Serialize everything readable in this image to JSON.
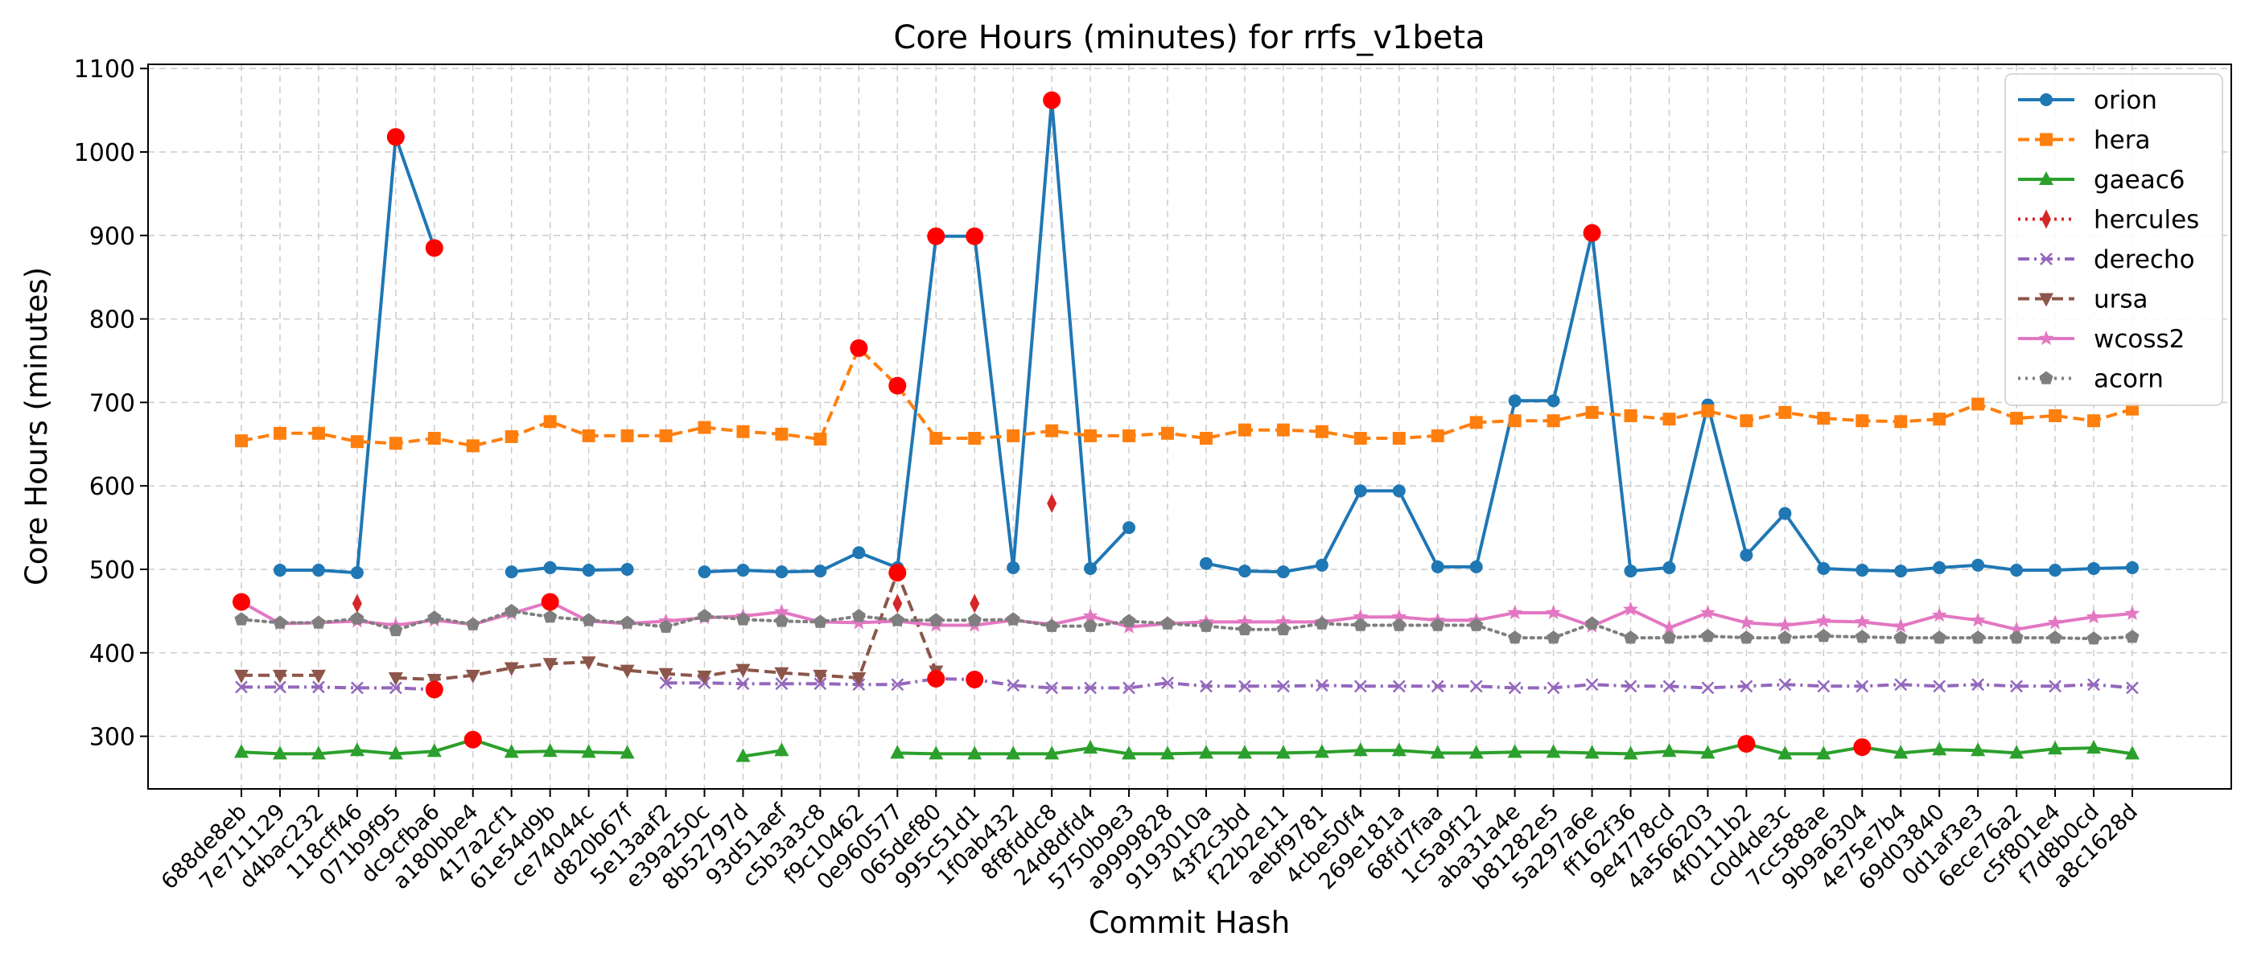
{
  "chart_data": {
    "type": "line",
    "title": "Core Hours (minutes) for rrfs_v1beta",
    "xlabel": "Commit Hash",
    "ylabel": "Core Hours (minutes)",
    "ylim": [
      237,
      1105
    ],
    "yticks": [
      300,
      400,
      500,
      600,
      700,
      800,
      900,
      1000,
      1100
    ],
    "grid": true,
    "legend_position": "top-right",
    "categories": [
      "688de8eb",
      "7e711129",
      "d4bac232",
      "118cff46",
      "071b9f95",
      "dc9cfba6",
      "a180bbe4",
      "417a2cf1",
      "61e54d9b",
      "ce74044c",
      "d820b67f",
      "5e13aaf2",
      "e39a250c",
      "8b52797d",
      "93d51aef",
      "c5b3a3c8",
      "f9c10462",
      "0e960577",
      "065def80",
      "995c51d1",
      "1f0ab432",
      "8f8fddc8",
      "24d8dfd4",
      "5750b9e3",
      "a9999828",
      "9193010a",
      "43f2c3bd",
      "f22b2e11",
      "aebf9781",
      "4cbe50f4",
      "269e181a",
      "68fd7faa",
      "1c5a9f12",
      "aba31a4e",
      "b81282e5",
      "5a297a6e",
      "ff162f36",
      "9e4778cd",
      "4a566203",
      "4f0111b2",
      "c0d4de3c",
      "7cc588ae",
      "9b9a6304",
      "4e75e7b4",
      "69d03840",
      "0d1af3e3",
      "6ece76a2",
      "c5f801e4",
      "f7d8b0cd",
      "a8c1628d"
    ],
    "series": [
      {
        "name": "orion",
        "color": "#1f77b4",
        "marker": "circle",
        "dash": "solid",
        "values": [
          null,
          499,
          499,
          496,
          1018,
          885,
          null,
          497,
          502,
          499,
          500,
          null,
          497,
          499,
          497,
          498,
          520,
          502,
          899,
          899,
          502,
          1062,
          501,
          550,
          null,
          507,
          498,
          497,
          505,
          594,
          594,
          503,
          503,
          702,
          702,
          903,
          498,
          502,
          697,
          517,
          567,
          501,
          499,
          498,
          502,
          505,
          499,
          499,
          501,
          502
        ]
      },
      {
        "name": "hera",
        "color": "#ff7f0e",
        "marker": "square",
        "dash": "dashed",
        "values": [
          654,
          663,
          663,
          653,
          651,
          657,
          648,
          659,
          677,
          660,
          660,
          660,
          670,
          665,
          662,
          656,
          765,
          720,
          657,
          657,
          660,
          666,
          660,
          660,
          663,
          657,
          667,
          667,
          665,
          657,
          657,
          660,
          676,
          678,
          678,
          688,
          684,
          680,
          690,
          678,
          688,
          681,
          678,
          677,
          680,
          698,
          681,
          684,
          678,
          692
        ]
      },
      {
        "name": "gaeac6",
        "color": "#2ca02c",
        "marker": "triangle-up",
        "dash": "solid",
        "values": [
          281,
          279,
          279,
          283,
          279,
          282,
          296,
          281,
          282,
          281,
          280,
          null,
          null,
          276,
          283,
          null,
          null,
          280,
          279,
          279,
          279,
          279,
          286,
          279,
          279,
          280,
          280,
          280,
          281,
          283,
          283,
          280,
          280,
          281,
          281,
          280,
          279,
          282,
          280,
          291,
          279,
          279,
          287,
          280,
          284,
          283,
          280,
          285,
          286,
          279
        ]
      },
      {
        "name": "hercules",
        "color": "#d62728",
        "marker": "diamond",
        "dash": "dotted",
        "values": [
          null,
          null,
          null,
          459,
          null,
          null,
          null,
          null,
          null,
          null,
          null,
          null,
          null,
          null,
          null,
          null,
          null,
          459,
          null,
          459,
          null,
          579,
          null,
          null,
          null,
          null,
          null,
          null,
          null,
          null,
          null,
          null,
          null,
          null,
          null,
          null,
          null,
          null,
          null,
          null,
          null,
          null,
          null,
          null,
          null,
          null,
          null,
          null,
          null,
          null
        ]
      },
      {
        "name": "derecho",
        "color": "#9467bd",
        "marker": "x",
        "dash": "dashdot",
        "values": [
          359,
          359,
          359,
          358,
          358,
          356,
          null,
          null,
          null,
          null,
          null,
          364,
          364,
          363,
          363,
          363,
          362,
          362,
          369,
          368,
          361,
          358,
          358,
          358,
          364,
          360,
          360,
          360,
          361,
          360,
          360,
          360,
          360,
          358,
          358,
          362,
          360,
          360,
          358,
          360,
          362,
          360,
          360,
          362,
          360,
          362,
          360,
          360,
          362,
          358
        ]
      },
      {
        "name": "ursa",
        "color": "#8c564b",
        "marker": "triangle-down",
        "dash": "dashed",
        "values": [
          373,
          373,
          373,
          null,
          370,
          368,
          373,
          382,
          387,
          389,
          379,
          375,
          372,
          380,
          376,
          373,
          370,
          496,
          378,
          null,
          null,
          null,
          null,
          null,
          null,
          null,
          null,
          null,
          null,
          null,
          null,
          null,
          null,
          null,
          null,
          null,
          null,
          null,
          null,
          null,
          null,
          null,
          null,
          null,
          null,
          null,
          null,
          null,
          null,
          null
        ]
      },
      {
        "name": "wcoss2",
        "color": "#e377c2",
        "marker": "star",
        "dash": "solid",
        "values": [
          461,
          435,
          436,
          438,
          433,
          439,
          434,
          447,
          461,
          438,
          435,
          438,
          442,
          444,
          449,
          437,
          436,
          438,
          433,
          433,
          439,
          434,
          444,
          431,
          435,
          437,
          437,
          437,
          437,
          443,
          443,
          439,
          439,
          448,
          448,
          432,
          452,
          430,
          448,
          436,
          433,
          438,
          437,
          432,
          445,
          439,
          428,
          436,
          443,
          447
        ]
      },
      {
        "name": "acorn",
        "color": "#7f7f7f",
        "marker": "pentagon",
        "dash": "dotted",
        "values": [
          440,
          436,
          436,
          441,
          427,
          442,
          434,
          450,
          443,
          439,
          436,
          431,
          444,
          440,
          438,
          437,
          444,
          439,
          439,
          439,
          440,
          432,
          432,
          438,
          435,
          432,
          428,
          428,
          435,
          433,
          433,
          433,
          433,
          418,
          418,
          435,
          418,
          418,
          420,
          418,
          418,
          420,
          419,
          418,
          418,
          418,
          418,
          418,
          417,
          419
        ]
      }
    ],
    "highlight_points": [
      {
        "series": "wcoss2",
        "category": "688de8eb",
        "value": 461
      },
      {
        "series": "orion",
        "category": "071b9f95",
        "value": 1018
      },
      {
        "series": "orion",
        "category": "dc9cfba6",
        "value": 885
      },
      {
        "series": "derecho",
        "category": "dc9cfba6",
        "value": 356
      },
      {
        "series": "gaeac6",
        "category": "a180bbe4",
        "value": 296
      },
      {
        "series": "wcoss2",
        "category": "61e54d9b",
        "value": 461
      },
      {
        "series": "hera",
        "category": "f9c10462",
        "value": 765
      },
      {
        "series": "hera",
        "category": "0e960577",
        "value": 720
      },
      {
        "series": "ursa",
        "category": "0e960577",
        "value": 496
      },
      {
        "series": "orion",
        "category": "065def80",
        "value": 899
      },
      {
        "series": "orion",
        "category": "995c51d1",
        "value": 899
      },
      {
        "series": "derecho",
        "category": "065def80",
        "value": 369
      },
      {
        "series": "derecho",
        "category": "995c51d1",
        "value": 368
      },
      {
        "series": "orion",
        "category": "8f8fddc8",
        "value": 1062
      },
      {
        "series": "orion",
        "category": "5a297a6e",
        "value": 903
      },
      {
        "series": "gaeac6",
        "category": "4f0111b2",
        "value": 291
      },
      {
        "series": "gaeac6",
        "category": "9b9a6304",
        "value": 287
      }
    ],
    "highlight_color": "#ff0000"
  }
}
